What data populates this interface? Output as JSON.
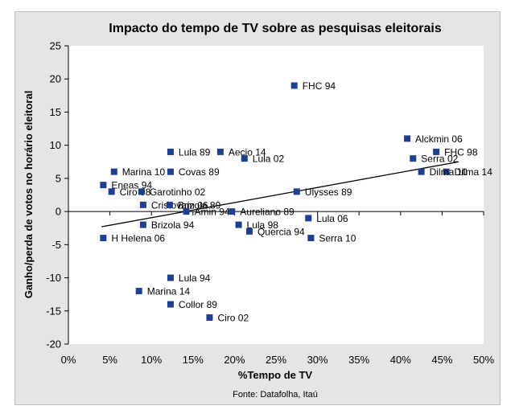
{
  "chart_data": {
    "type": "scatter",
    "title": "Impacto do tempo de TV sobre as pesquisas eleitorais",
    "xlabel": "%Tempo de TV",
    "ylabel": "Ganho/perda de votos no horário eleitoral",
    "source": "Fonte: Datafolha, Itaú",
    "xlim": [
      0,
      0.5
    ],
    "ylim": [
      -20,
      25
    ],
    "x_ticks": [
      0,
      0.05,
      0.1,
      0.15,
      0.2,
      0.25,
      0.3,
      0.35,
      0.4,
      0.45,
      0.5
    ],
    "x_tick_labels": [
      "0%",
      "5%",
      "10%",
      "15%",
      "20%",
      "25%",
      "30%",
      "35%",
      "40%",
      "45%",
      "50%"
    ],
    "y_ticks": [
      25,
      20,
      15,
      10,
      5,
      0,
      -5,
      -10,
      -15,
      -20
    ],
    "y_tick_labels": [
      "25",
      "20",
      "15",
      "10",
      "5",
      "0",
      "-5",
      "-10",
      "-15",
      "-20"
    ],
    "grid": false,
    "marker_color": "#1f3f8f",
    "trendline": {
      "x": [
        0.04,
        0.47
      ],
      "y": [
        -2.3,
        7.5
      ],
      "color": "#000000"
    },
    "points": [
      {
        "label": "FHC 94",
        "x": 0.272,
        "y": 19
      },
      {
        "label": "Alckmin 06",
        "x": 0.408,
        "y": 11
      },
      {
        "label": "FHC 98",
        "x": 0.443,
        "y": 9
      },
      {
        "label": "Serra 02",
        "x": 0.415,
        "y": 8
      },
      {
        "label": "Dilma 14",
        "x": 0.455,
        "y": 6
      },
      {
        "label": "Dilma 10",
        "x": 0.425,
        "y": 6
      },
      {
        "label": "Aecio 14",
        "x": 0.183,
        "y": 9
      },
      {
        "label": "Lula 89",
        "x": 0.123,
        "y": 9
      },
      {
        "label": "Lula 02",
        "x": 0.212,
        "y": 8
      },
      {
        "label": "Marina 10",
        "x": 0.055,
        "y": 6
      },
      {
        "label": "Covas 89",
        "x": 0.123,
        "y": 6
      },
      {
        "label": "Eneas 94",
        "x": 0.042,
        "y": 4
      },
      {
        "label": "Ciro 98",
        "x": 0.052,
        "y": 3
      },
      {
        "label": "Garotinho 02",
        "x": 0.088,
        "y": 3
      },
      {
        "label": "Ulysses 89",
        "x": 0.275,
        "y": 3
      },
      {
        "label": "Cristovam 06",
        "x": 0.09,
        "y": 1
      },
      {
        "label": "Brizola 89",
        "x": 0.122,
        "y": 1
      },
      {
        "label": "Amin 94",
        "x": 0.142,
        "y": 0
      },
      {
        "label": "Aureliano 89",
        "x": 0.197,
        "y": 0
      },
      {
        "label": "Lula 06",
        "x": 0.289,
        "y": -1
      },
      {
        "label": "Brizola 94",
        "x": 0.09,
        "y": -2
      },
      {
        "label": "Lula 98",
        "x": 0.205,
        "y": -2
      },
      {
        "label": "Quercia 94",
        "x": 0.218,
        "y": -3
      },
      {
        "label": "H Helena 06",
        "x": 0.042,
        "y": -4
      },
      {
        "label": "Serra 10",
        "x": 0.292,
        "y": -4
      },
      {
        "label": "Lula 94",
        "x": 0.123,
        "y": -10
      },
      {
        "label": "Marina 14",
        "x": 0.085,
        "y": -12
      },
      {
        "label": "Collor 89",
        "x": 0.123,
        "y": -14
      },
      {
        "label": "Ciro 02",
        "x": 0.17,
        "y": -16
      }
    ]
  }
}
